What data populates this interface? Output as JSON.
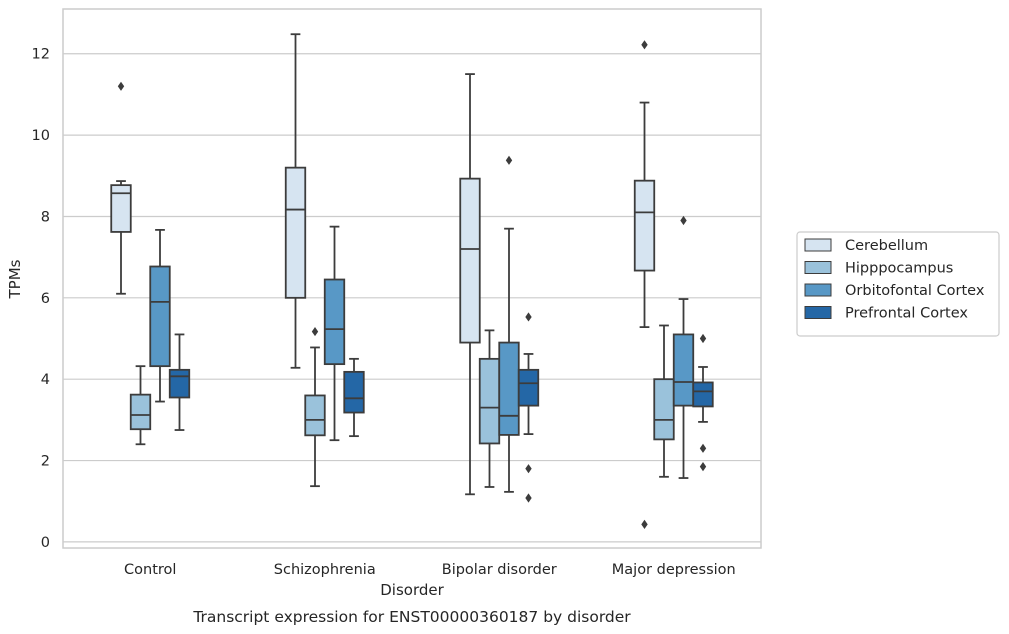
{
  "chart_data": {
    "type": "box",
    "xlabel": "Disorder",
    "ylabel": "TPMs",
    "caption": "Transcript expression for ENST00000360187 by disorder",
    "categories": [
      "Control",
      "Schizophrenia",
      "Bipolar disorder",
      "Major depression"
    ],
    "yticks": [
      0,
      2,
      4,
      6,
      8,
      10,
      12
    ],
    "ytick_labels": [
      "0",
      "2",
      "4",
      "6",
      "8",
      "10",
      "12"
    ],
    "ylim": [
      -0.15,
      13.1
    ],
    "grid": "horizontal",
    "legend_position": "right",
    "series": [
      {
        "name": "Cerebellum",
        "color": "#d6e4f1",
        "boxes": [
          {
            "whisker_low": 6.1,
            "q1": 7.62,
            "median": 8.57,
            "q3": 8.77,
            "whisker_high": 8.87,
            "outliers": [
              11.2
            ]
          },
          {
            "whisker_low": 4.28,
            "q1": 6.0,
            "median": 8.17,
            "q3": 9.2,
            "whisker_high": 12.48,
            "outliers": []
          },
          {
            "whisker_low": 1.17,
            "q1": 4.9,
            "median": 7.2,
            "q3": 8.93,
            "whisker_high": 11.5,
            "outliers": []
          },
          {
            "whisker_low": 5.28,
            "q1": 6.67,
            "median": 8.1,
            "q3": 8.88,
            "whisker_high": 10.8,
            "outliers": [
              12.22,
              0.43
            ]
          }
        ]
      },
      {
        "name": "Hipppocampus",
        "color": "#9ac2db",
        "boxes": [
          {
            "whisker_low": 2.4,
            "q1": 2.77,
            "median": 3.12,
            "q3": 3.62,
            "whisker_high": 4.32,
            "outliers": []
          },
          {
            "whisker_low": 1.37,
            "q1": 2.62,
            "median": 3.0,
            "q3": 3.6,
            "whisker_high": 4.78,
            "outliers": [
              5.17
            ]
          },
          {
            "whisker_low": 1.35,
            "q1": 2.42,
            "median": 3.3,
            "q3": 4.5,
            "whisker_high": 5.2,
            "outliers": []
          },
          {
            "whisker_low": 1.6,
            "q1": 2.52,
            "median": 3.0,
            "q3": 4.0,
            "whisker_high": 5.32,
            "outliers": []
          }
        ]
      },
      {
        "name": "Orbitofontal Cortex",
        "color": "#5898c6",
        "boxes": [
          {
            "whisker_low": 3.45,
            "q1": 4.32,
            "median": 5.9,
            "q3": 6.77,
            "whisker_high": 7.67,
            "outliers": []
          },
          {
            "whisker_low": 2.5,
            "q1": 4.37,
            "median": 5.23,
            "q3": 6.45,
            "whisker_high": 7.75,
            "outliers": []
          },
          {
            "whisker_low": 1.23,
            "q1": 2.63,
            "median": 3.1,
            "q3": 4.9,
            "whisker_high": 7.7,
            "outliers": [
              9.38
            ]
          },
          {
            "whisker_low": 1.57,
            "q1": 3.35,
            "median": 3.93,
            "q3": 5.1,
            "whisker_high": 5.97,
            "outliers": [
              7.9
            ]
          }
        ]
      },
      {
        "name": "Prefrontal Cortex",
        "color": "#2467a6",
        "boxes": [
          {
            "whisker_low": 2.75,
            "q1": 3.55,
            "median": 4.07,
            "q3": 4.23,
            "whisker_high": 5.1,
            "outliers": []
          },
          {
            "whisker_low": 2.6,
            "q1": 3.18,
            "median": 3.53,
            "q3": 4.18,
            "whisker_high": 4.5,
            "outliers": []
          },
          {
            "whisker_low": 2.65,
            "q1": 3.35,
            "median": 3.9,
            "q3": 4.23,
            "whisker_high": 4.62,
            "outliers": [
              5.53,
              1.8,
              1.08
            ]
          },
          {
            "whisker_low": 2.95,
            "q1": 3.33,
            "median": 3.7,
            "q3": 3.92,
            "whisker_high": 4.3,
            "outliers": [
              5.0,
              2.3,
              1.85
            ]
          }
        ]
      }
    ]
  }
}
